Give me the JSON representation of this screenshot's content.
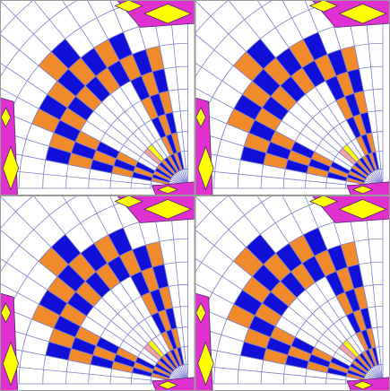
{
  "pattern": {
    "tile_grid": {
      "columns": 2,
      "rows": 2
    },
    "rings": 13,
    "spokes": 16,
    "colors": {
      "background": "#ffffff",
      "grid_line": "#7f7fd0",
      "checker_a": "#1010d8",
      "checker_b": "#f08a2a",
      "accent_magenta": "#e030d0",
      "accent_yellow": "#ffff00",
      "accent_pink": "#f6a0a0",
      "outline": "#4a2a6a",
      "tile_border": "#9a9a9a"
    }
  }
}
